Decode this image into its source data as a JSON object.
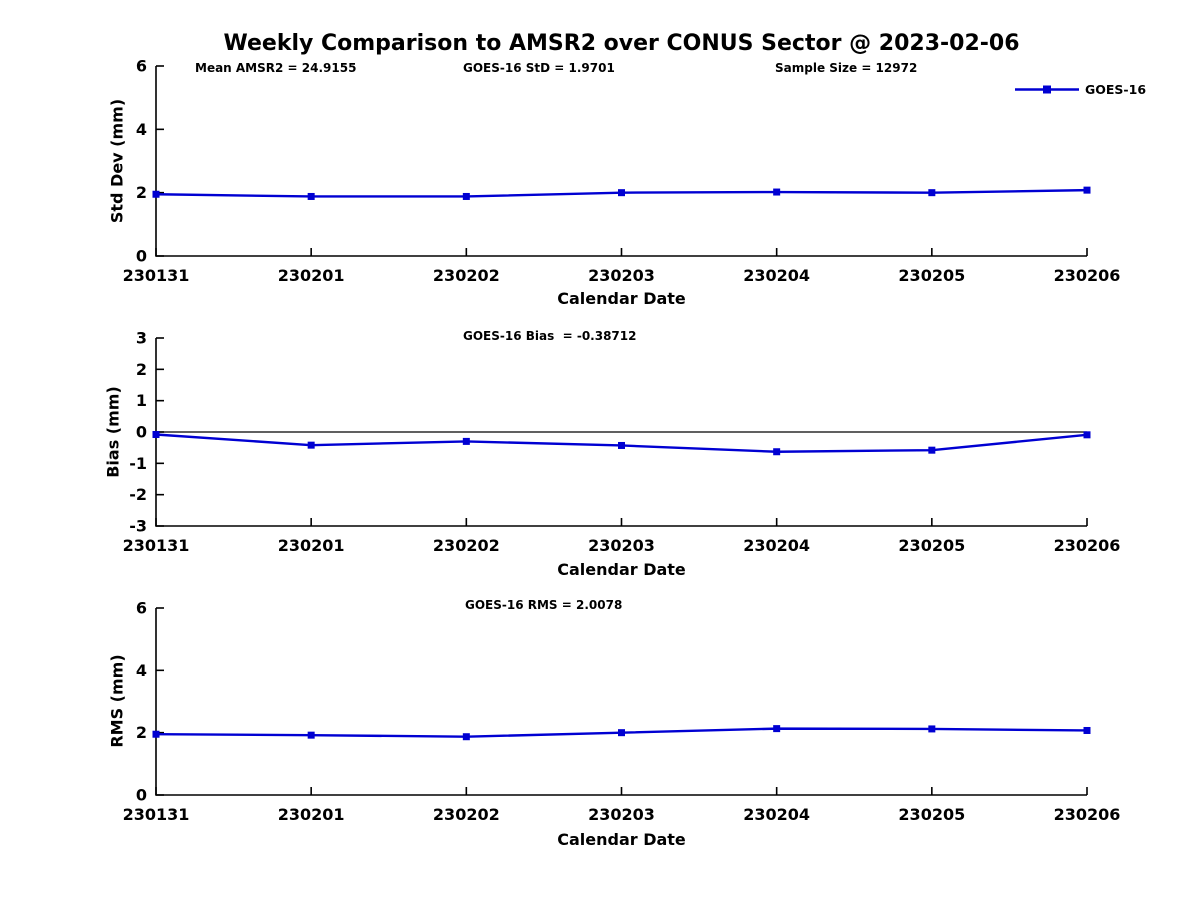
{
  "title": "Weekly Comparison to AMSR2 over CONUS Sector @ 2023-02-06",
  "colors": {
    "line": "#0000d2",
    "axis": "#000000",
    "zero_line": "#000000"
  },
  "legend": {
    "label": "GOES-16"
  },
  "annotations": {
    "mean_amsr2": "Mean AMSR2 = 24.9155",
    "goes16_std": "GOES-16 StD = 1.9701",
    "sample_size": "Sample Size = 12972"
  },
  "chart_data": [
    {
      "type": "line",
      "name": "std-dev",
      "title": "",
      "xlabel": "Calendar Date",
      "ylabel": "Std Dev (mm)",
      "categories": [
        "230131",
        "230201",
        "230202",
        "230203",
        "230204",
        "230205",
        "230206"
      ],
      "series": [
        {
          "name": "GOES-16",
          "values": [
            1.95,
            1.88,
            1.88,
            2.0,
            2.02,
            2.0,
            2.08
          ]
        }
      ],
      "ylim": [
        0,
        6
      ],
      "yticks": [
        0,
        2,
        4,
        6
      ],
      "zero_line": false,
      "grid": false,
      "legend_position": "top-right"
    },
    {
      "type": "line",
      "name": "bias",
      "title": "GOES-16 Bias  = -0.38712",
      "xlabel": "Calendar Date",
      "ylabel": "Bias (mm)",
      "categories": [
        "230131",
        "230201",
        "230202",
        "230203",
        "230204",
        "230205",
        "230206"
      ],
      "series": [
        {
          "name": "GOES-16",
          "values": [
            -0.08,
            -0.42,
            -0.3,
            -0.43,
            -0.63,
            -0.58,
            -0.09
          ]
        }
      ],
      "ylim": [
        -3,
        3
      ],
      "yticks": [
        -3,
        -2,
        -1,
        0,
        1,
        2,
        3
      ],
      "zero_line": true,
      "grid": false,
      "legend_position": "none"
    },
    {
      "type": "line",
      "name": "rms",
      "title": "GOES-16 RMS = 2.0078",
      "xlabel": "Calendar Date",
      "ylabel": "RMS (mm)",
      "categories": [
        "230131",
        "230201",
        "230202",
        "230203",
        "230204",
        "230205",
        "230206"
      ],
      "series": [
        {
          "name": "GOES-16",
          "values": [
            1.95,
            1.92,
            1.87,
            2.0,
            2.13,
            2.12,
            2.07
          ]
        }
      ],
      "ylim": [
        0,
        6
      ],
      "yticks": [
        0,
        2,
        4,
        6
      ],
      "zero_line": false,
      "grid": false,
      "legend_position": "none"
    }
  ]
}
